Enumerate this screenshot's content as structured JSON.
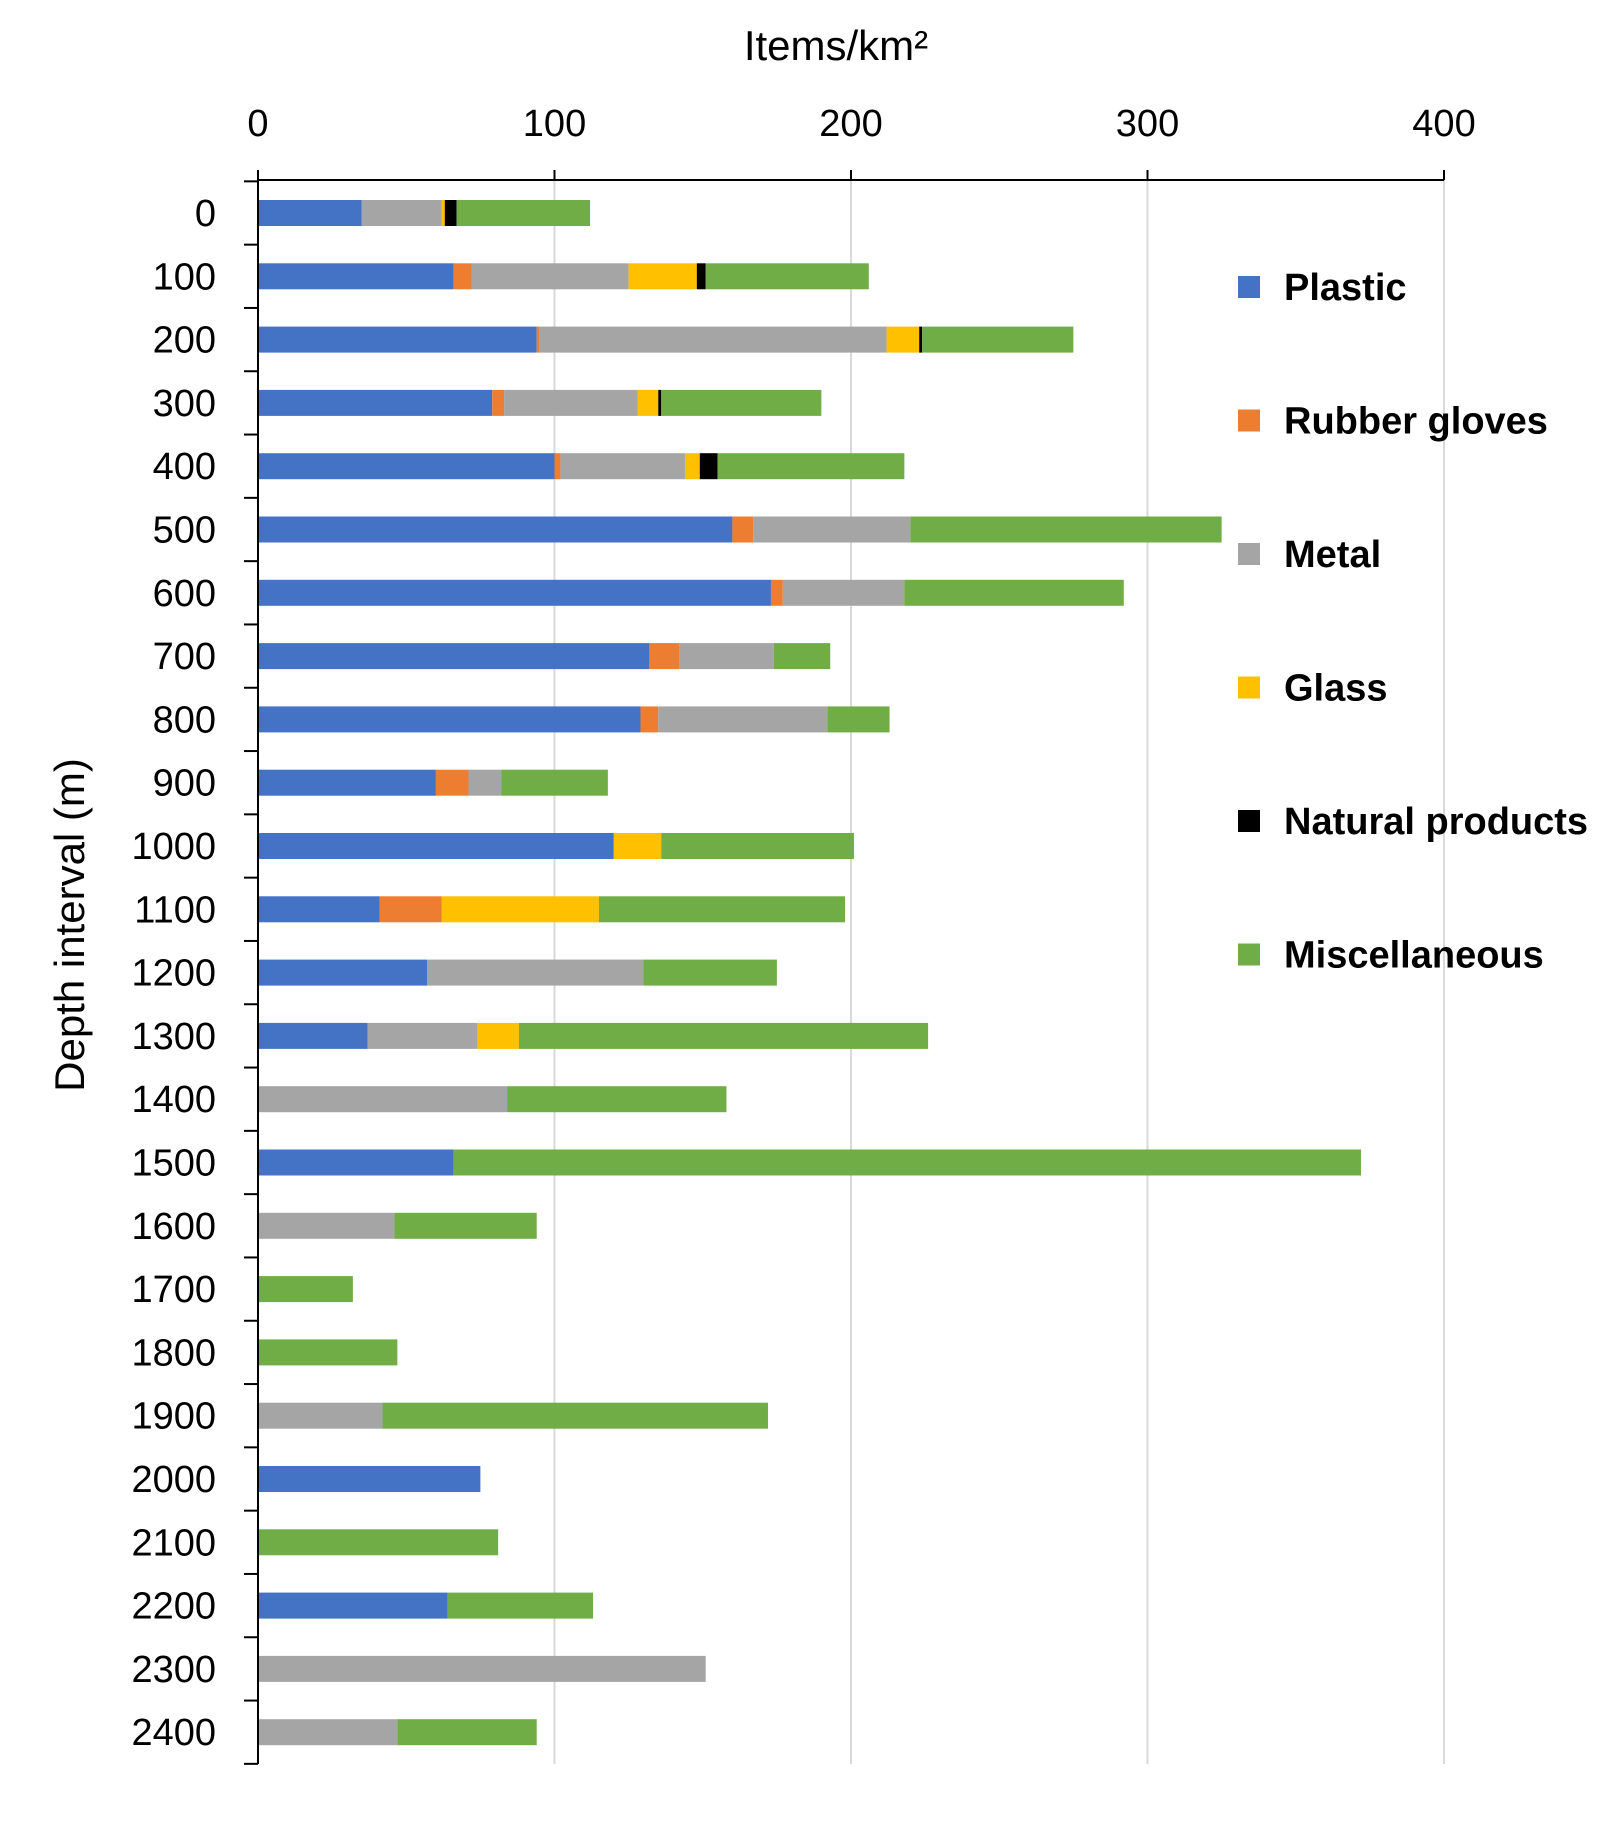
{
  "chart_data": {
    "type": "bar",
    "orientation": "horizontal",
    "stacked": true,
    "xlabel": "Items/km²",
    "ylabel": "Depth interval (m)",
    "xlim": [
      0,
      400
    ],
    "x_ticks": [
      "0",
      "100",
      "200",
      "300",
      "400"
    ],
    "x_tick_values": [
      0,
      100,
      200,
      300,
      400
    ],
    "x_axis_position": "top",
    "grid": "vertical",
    "legend_position": "right",
    "categories": [
      "0",
      "100",
      "200",
      "300",
      "400",
      "500",
      "600",
      "700",
      "800",
      "900",
      "1000",
      "1100",
      "1200",
      "1300",
      "1400",
      "1500",
      "1600",
      "1700",
      "1800",
      "1900",
      "2000",
      "2100",
      "2200",
      "2300",
      "2400"
    ],
    "series": [
      {
        "name": "Plastic",
        "color": "#4472C4",
        "values": [
          35,
          66,
          94,
          79,
          100,
          160,
          173,
          132,
          129,
          60,
          120,
          41,
          57,
          37,
          0,
          66,
          0,
          0,
          0,
          0,
          75,
          0,
          64,
          0,
          0
        ]
      },
      {
        "name": "Rubber gloves",
        "color": "#ED7D31",
        "values": [
          0,
          6,
          1,
          4,
          2,
          7,
          4,
          10,
          6,
          11,
          0,
          21,
          0,
          0,
          0,
          0,
          0,
          0,
          0,
          0,
          0,
          0,
          0,
          0,
          0
        ]
      },
      {
        "name": "Metal",
        "color": "#A5A5A5",
        "values": [
          27,
          53,
          117,
          45,
          42,
          53,
          41,
          32,
          57,
          11,
          0,
          0,
          73,
          37,
          84,
          0,
          46,
          0,
          0,
          42,
          0,
          0,
          0,
          151,
          47
        ]
      },
      {
        "name": "Glass",
        "color": "#FFC000",
        "values": [
          1,
          23,
          11,
          7,
          5,
          0,
          0,
          0,
          0,
          0,
          16,
          53,
          0,
          14,
          0,
          0,
          0,
          0,
          0,
          0,
          0,
          0,
          0,
          0,
          0
        ]
      },
      {
        "name": "Natural products",
        "color": "#000000",
        "values": [
          4,
          3,
          1,
          1,
          6,
          0,
          0,
          0,
          0,
          0,
          0,
          0,
          0,
          0,
          0,
          0,
          0,
          0,
          0,
          0,
          0,
          0,
          0,
          0,
          0
        ]
      },
      {
        "name": "Miscellaneous",
        "color": "#70AD47",
        "values": [
          45,
          55,
          51,
          54,
          63,
          105,
          74,
          19,
          21,
          36,
          65,
          83,
          45,
          138,
          74,
          306,
          48,
          32,
          47,
          130,
          0,
          81,
          49,
          0,
          47
        ]
      }
    ]
  }
}
